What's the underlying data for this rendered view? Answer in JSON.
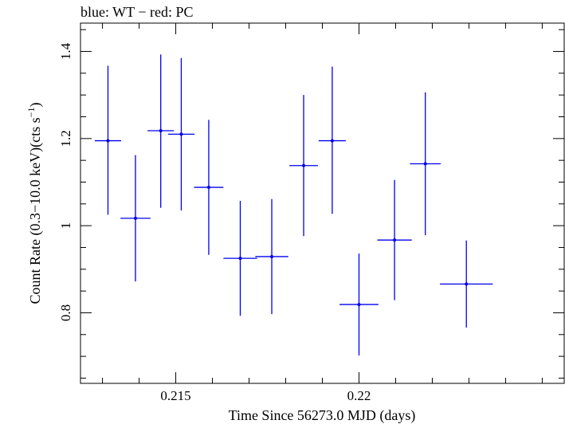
{
  "chart_data": {
    "type": "scatter",
    "title": "blue: WT − red: PC",
    "xlabel": "Time Since 56273.0 MJD (days)",
    "ylabel": "Count Rate (0.3−10.0 keV)(cts s",
    "ylabel_sup": "−1",
    "ylabel_tail": ")",
    "xlim": [
      0.2124,
      0.2256
    ],
    "ylim": [
      0.638,
      1.465
    ],
    "x_major_ticks": [
      0.215,
      0.22
    ],
    "x_tick_labels": [
      "0.215",
      "0.22"
    ],
    "x_minor_step": 0.001,
    "y_major_ticks": [
      0.8,
      1.0,
      1.2,
      1.4
    ],
    "y_tick_labels": [
      "0.8",
      "1",
      "1.2",
      "1.4"
    ],
    "y_minor_step": 0.05,
    "grid": false,
    "series": [
      {
        "color": "#0000ee",
        "points": [
          {
            "x": 0.21315,
            "xerr": 0.00036,
            "y": 1.195,
            "yerr_lo": 0.17,
            "yerr_hi": 0.172
          },
          {
            "x": 0.2139,
            "xerr": 0.00041,
            "y": 1.017,
            "yerr_lo": 0.145,
            "yerr_hi": 0.145
          },
          {
            "x": 0.21459,
            "xerr": 0.00036,
            "y": 1.218,
            "yerr_lo": 0.177,
            "yerr_hi": 0.175
          },
          {
            "x": 0.21515,
            "xerr": 0.00036,
            "y": 1.21,
            "yerr_lo": 0.175,
            "yerr_hi": 0.175
          },
          {
            "x": 0.2159,
            "xerr": 0.0004,
            "y": 1.088,
            "yerr_lo": 0.155,
            "yerr_hi": 0.155
          },
          {
            "x": 0.21676,
            "xerr": 0.00046,
            "y": 0.925,
            "yerr_lo": 0.132,
            "yerr_hi": 0.132
          },
          {
            "x": 0.21762,
            "xerr": 0.00045,
            "y": 0.929,
            "yerr_lo": 0.132,
            "yerr_hi": 0.132
          },
          {
            "x": 0.21849,
            "xerr": 0.00039,
            "y": 1.138,
            "yerr_lo": 0.162,
            "yerr_hi": 0.162
          },
          {
            "x": 0.21927,
            "xerr": 0.00037,
            "y": 1.195,
            "yerr_lo": 0.168,
            "yerr_hi": 0.17
          },
          {
            "x": 0.22,
            "xerr": 0.00053,
            "y": 0.819,
            "yerr_lo": 0.117,
            "yerr_hi": 0.117
          },
          {
            "x": 0.22097,
            "xerr": 0.00047,
            "y": 0.967,
            "yerr_lo": 0.138,
            "yerr_hi": 0.138
          },
          {
            "x": 0.22181,
            "xerr": 0.00042,
            "y": 1.142,
            "yerr_lo": 0.164,
            "yerr_hi": 0.164
          },
          {
            "x": 0.22293,
            "xerr": 0.00072,
            "y": 0.866,
            "yerr_lo": 0.1,
            "yerr_hi": 0.1
          }
        ]
      }
    ]
  }
}
